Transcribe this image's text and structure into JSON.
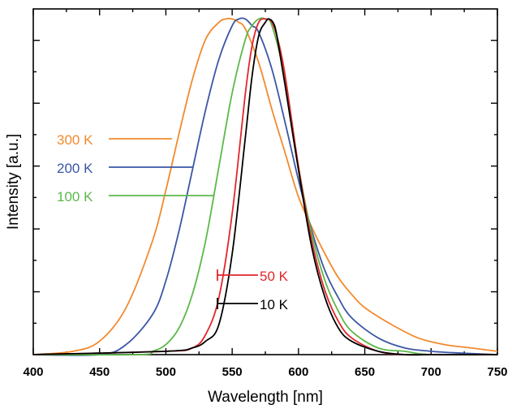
{
  "chart_data": {
    "type": "line",
    "xlabel": "Wavelength [nm]",
    "ylabel": "Intensity [a.u.]",
    "xlim": [
      400,
      750
    ],
    "ylim": [
      0,
      1.03
    ],
    "xticks": [
      400,
      450,
      500,
      550,
      600,
      650,
      700,
      750
    ],
    "xtick_labels": [
      "400",
      "450",
      "500",
      "550",
      "600",
      "650",
      "700",
      "750"
    ],
    "y_tick_labels_shown": false,
    "grid": false,
    "legend_placement": "inline-left",
    "series": [
      {
        "name": "300 K",
        "color": "#f28a2e",
        "x": [
          400,
          430,
          450,
          470,
          490,
          500,
          510,
          520,
          530,
          540,
          545,
          550,
          555,
          560,
          570,
          580,
          590,
          600,
          610,
          620,
          630,
          640,
          650,
          670,
          690,
          710,
          730,
          750
        ],
        "y": [
          0.0,
          0.01,
          0.04,
          0.14,
          0.34,
          0.49,
          0.66,
          0.82,
          0.94,
          0.99,
          1.0,
          1.0,
          0.99,
          0.97,
          0.87,
          0.73,
          0.6,
          0.47,
          0.38,
          0.3,
          0.23,
          0.18,
          0.14,
          0.09,
          0.05,
          0.03,
          0.02,
          0.01
        ]
      },
      {
        "name": "200 K",
        "color": "#3a56a5",
        "x": [
          400,
          450,
          470,
          490,
          500,
          510,
          520,
          530,
          540,
          550,
          555,
          560,
          565,
          570,
          580,
          590,
          600,
          610,
          620,
          630,
          640,
          660,
          680,
          700,
          720,
          750
        ],
        "y": [
          0.0,
          0.0,
          0.03,
          0.12,
          0.22,
          0.37,
          0.55,
          0.73,
          0.88,
          0.98,
          1.0,
          1.0,
          0.98,
          0.96,
          0.85,
          0.69,
          0.52,
          0.37,
          0.25,
          0.17,
          0.11,
          0.05,
          0.02,
          0.01,
          0.005,
          0.0
        ]
      },
      {
        "name": "100 K",
        "color": "#5cb84a",
        "x": [
          400,
          480,
          490,
          500,
          510,
          520,
          530,
          540,
          550,
          560,
          565,
          570,
          575,
          580,
          590,
          600,
          610,
          620,
          630,
          640,
          660,
          680,
          700,
          750
        ],
        "y": [
          0.0,
          0.0,
          0.01,
          0.03,
          0.08,
          0.18,
          0.34,
          0.56,
          0.78,
          0.94,
          0.98,
          1.0,
          1.0,
          0.98,
          0.82,
          0.56,
          0.36,
          0.22,
          0.13,
          0.07,
          0.02,
          0.01,
          0.0,
          0.0
        ]
      },
      {
        "name": "50 K",
        "color": "#e0262b",
        "x": [
          400,
          500,
          520,
          530,
          540,
          550,
          560,
          565,
          570,
          575,
          580,
          585,
          590,
          600,
          610,
          620,
          630,
          640,
          660,
          680,
          700,
          750
        ],
        "y": [
          0.0,
          0.01,
          0.02,
          0.06,
          0.17,
          0.42,
          0.78,
          0.92,
          0.99,
          1.0,
          0.99,
          0.93,
          0.83,
          0.56,
          0.34,
          0.19,
          0.1,
          0.05,
          0.01,
          0.0,
          0.0,
          0.0
        ]
      },
      {
        "name": "10 K",
        "color": "#000000",
        "x": [
          400,
          500,
          520,
          530,
          540,
          550,
          560,
          565,
          570,
          575,
          578,
          582,
          585,
          590,
          600,
          610,
          620,
          630,
          640,
          660,
          680,
          700,
          750
        ],
        "y": [
          0.0,
          0.01,
          0.02,
          0.04,
          0.09,
          0.3,
          0.65,
          0.83,
          0.95,
          0.99,
          1.0,
          0.98,
          0.92,
          0.8,
          0.55,
          0.32,
          0.17,
          0.08,
          0.04,
          0.01,
          0.0,
          0.0,
          0.0
        ]
      }
    ]
  }
}
